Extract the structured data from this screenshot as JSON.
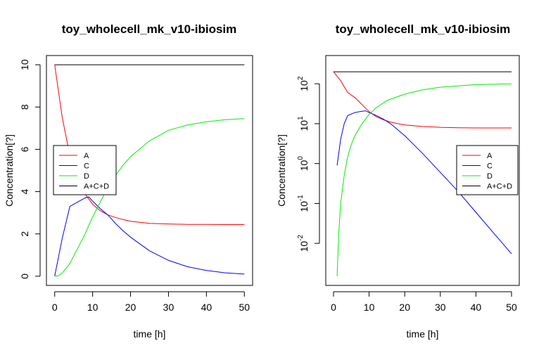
{
  "chart_data": [
    {
      "type": "line",
      "title": "toy_wholecell_mk_v10-ibiosim",
      "xlabel": "time [h]",
      "ylabel": "Concentration[?]",
      "xlim": [
        0,
        50
      ],
      "ylim": [
        0,
        10
      ],
      "yscale": "linear",
      "xticks": [
        0,
        10,
        20,
        30,
        40,
        50
      ],
      "yticks": [
        0,
        2,
        4,
        6,
        8,
        10
      ],
      "ytick_labels": [
        "0",
        "2",
        "4",
        "6",
        "8",
        "10"
      ],
      "legend": {
        "placement": "center-left"
      },
      "series": [
        {
          "name": "A",
          "color": "#ff0000",
          "x": [
            0,
            2,
            4,
            6,
            8,
            10,
            12,
            14,
            16,
            18,
            20,
            25,
            30,
            35,
            40,
            45,
            50
          ],
          "y": [
            10,
            7.5,
            5.7,
            4.6,
            3.9,
            3.4,
            3.1,
            2.9,
            2.78,
            2.68,
            2.6,
            2.5,
            2.47,
            2.45,
            2.45,
            2.44,
            2.44
          ]
        },
        {
          "name": "C",
          "color": "#0000ff",
          "x": [
            0,
            2,
            4,
            6,
            8,
            9,
            10,
            12,
            14,
            16,
            18,
            20,
            25,
            30,
            35,
            40,
            45,
            50
          ],
          "y": [
            0,
            1.8,
            3.3,
            3.5,
            3.7,
            3.75,
            3.55,
            3.2,
            2.9,
            2.5,
            2.15,
            1.85,
            1.2,
            0.75,
            0.45,
            0.27,
            0.16,
            0.1
          ]
        },
        {
          "name": "D",
          "color": "#00ee00",
          "x": [
            0,
            1,
            2,
            4,
            6,
            8,
            10,
            12,
            14,
            16,
            18,
            20,
            25,
            30,
            35,
            40,
            45,
            50
          ],
          "y": [
            0,
            0.02,
            0.15,
            0.6,
            1.3,
            2.0,
            2.8,
            3.5,
            4.2,
            4.75,
            5.25,
            5.65,
            6.4,
            6.9,
            7.15,
            7.3,
            7.4,
            7.45
          ]
        },
        {
          "name": "A+C+D",
          "color": "#000000",
          "x": [
            0,
            50
          ],
          "y": [
            10,
            10
          ]
        }
      ]
    },
    {
      "type": "line",
      "title": "toy_wholecell_mk_v10-ibiosim",
      "xlabel": "time [h]",
      "ylabel": "Concentration[?]",
      "xlim": [
        0,
        50
      ],
      "ylim": [
        0.0015,
        300
      ],
      "yscale": "log",
      "xticks": [
        0,
        10,
        20,
        30,
        40,
        50
      ],
      "yticks": [
        0.01,
        0.1,
        1,
        10,
        100
      ],
      "ytick_exponents": [
        "-2",
        "-1",
        "0",
        "1",
        "2"
      ],
      "legend": {
        "placement": "right"
      },
      "series": [
        {
          "name": "A",
          "color": "#ff0000",
          "x": [
            0,
            2,
            4,
            6,
            8,
            10,
            12,
            14,
            16,
            18,
            20,
            25,
            30,
            35,
            40,
            45,
            50
          ],
          "y": [
            200,
            120,
            60,
            45,
            30,
            20,
            15,
            12.5,
            11,
            10,
            9.3,
            8.5,
            8.1,
            7.9,
            7.8,
            7.8,
            7.8
          ]
        },
        {
          "name": "C",
          "color": "#0000ff",
          "x": [
            1,
            2,
            3,
            4,
            6,
            8,
            9,
            10,
            12,
            14,
            16,
            20,
            25,
            30,
            35,
            40,
            45,
            50
          ],
          "y": [
            0.9,
            4,
            10,
            16,
            19,
            20.5,
            21,
            19,
            16,
            13,
            10,
            5,
            1.8,
            0.6,
            0.2,
            0.06,
            0.018,
            0.0055
          ]
        },
        {
          "name": "D",
          "color": "#00ee00",
          "x": [
            1,
            1.5,
            2,
            3,
            4,
            5,
            6,
            8,
            10,
            12,
            15,
            20,
            25,
            30,
            40,
            50
          ],
          "y": [
            0.0015,
            0.02,
            0.1,
            0.5,
            1.5,
            3,
            5,
            10,
            17,
            25,
            38,
            55,
            70,
            82,
            95,
            100
          ]
        },
        {
          "name": "A+C+D",
          "color": "#000000",
          "x": [
            0,
            50
          ],
          "y": [
            200,
            200
          ]
        }
      ]
    }
  ]
}
